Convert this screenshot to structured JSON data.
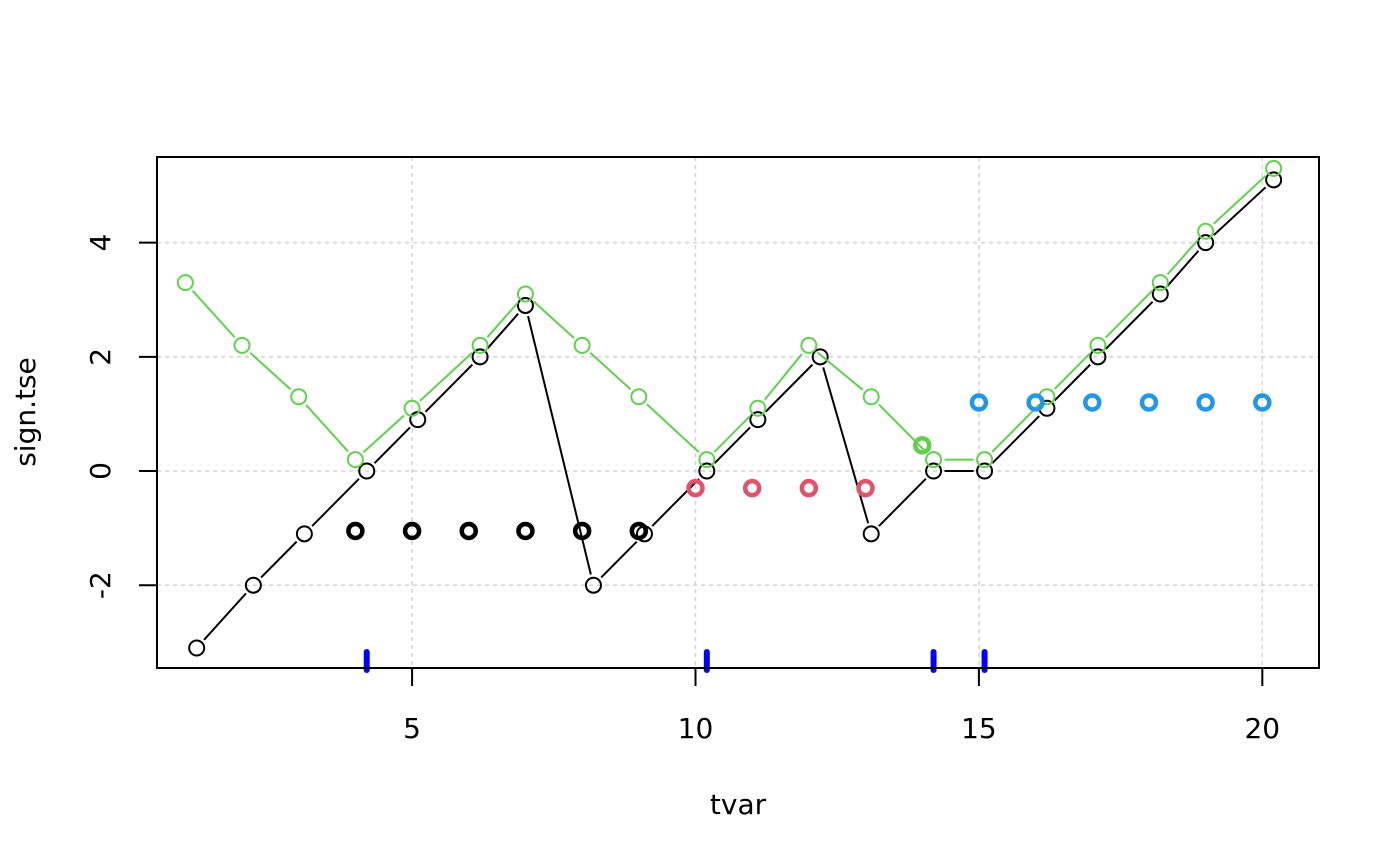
{
  "chart_data": {
    "type": "scatter",
    "title": "",
    "xlabel": "tvar",
    "ylabel": "sign.tse",
    "xlim": [
      0.5,
      21
    ],
    "ylim": [
      -3.45,
      5.5
    ],
    "xticks": [
      5,
      10,
      15,
      20
    ],
    "yticks": [
      -2,
      0,
      2,
      4
    ],
    "xtick_labels": [
      "5",
      "10",
      "15",
      "20"
    ],
    "ytick_labels": [
      "-2",
      "0",
      "2",
      "4"
    ],
    "grid": true,
    "series": [
      {
        "style": "line-points",
        "color": "#000000",
        "x": [
          1.2,
          2.2,
          3.1,
          4.2,
          5.1,
          6.2,
          7.0,
          8.2,
          9.1,
          10.2,
          11.1,
          12.2,
          13.1,
          14.2,
          15.1,
          16.2,
          17.1,
          18.2,
          19.0,
          20.2
        ],
        "y": [
          -3.1,
          -2.0,
          -1.1,
          0.0,
          0.9,
          2.0,
          2.9,
          -2.0,
          -1.1,
          0.0,
          0.9,
          2.0,
          -1.1,
          0.0,
          0.0,
          1.1,
          2.0,
          3.1,
          4.0,
          5.1
        ]
      },
      {
        "style": "line-points",
        "color": "#61D04F",
        "x": [
          1.0,
          2.0,
          3.0,
          4.0,
          5.0,
          6.2,
          7.0,
          8.0,
          9.0,
          10.2,
          11.1,
          12.0,
          13.1,
          14.2,
          15.1,
          16.2,
          17.1,
          18.2,
          19.0,
          20.2
        ],
        "y": [
          3.3,
          2.2,
          1.3,
          0.2,
          1.1,
          2.2,
          3.1,
          2.2,
          1.3,
          0.2,
          1.1,
          2.2,
          1.3,
          0.2,
          0.2,
          1.3,
          2.2,
          3.3,
          4.2,
          5.3
        ]
      },
      {
        "style": "bold-points",
        "color": "#000000",
        "x": [
          4,
          5,
          6,
          7,
          8,
          9
        ],
        "y": [
          -1.05,
          -1.05,
          -1.05,
          -1.05,
          -1.05,
          -1.05
        ]
      },
      {
        "style": "bold-points",
        "color": "#DF536B",
        "x": [
          10,
          11,
          12,
          13
        ],
        "y": [
          -0.3,
          -0.3,
          -0.3,
          -0.3
        ]
      },
      {
        "style": "bold-points",
        "color": "#61D04F",
        "x": [
          14
        ],
        "y": [
          0.45
        ]
      },
      {
        "style": "bold-points",
        "color": "#2297E6",
        "x": [
          15,
          16,
          17,
          18,
          19,
          20
        ],
        "y": [
          1.2,
          1.2,
          1.2,
          1.2,
          1.2,
          1.2
        ]
      },
      {
        "style": "rug",
        "color": "#0000FF",
        "x": [
          4.2,
          10.2,
          14.2,
          15.1
        ]
      }
    ]
  }
}
